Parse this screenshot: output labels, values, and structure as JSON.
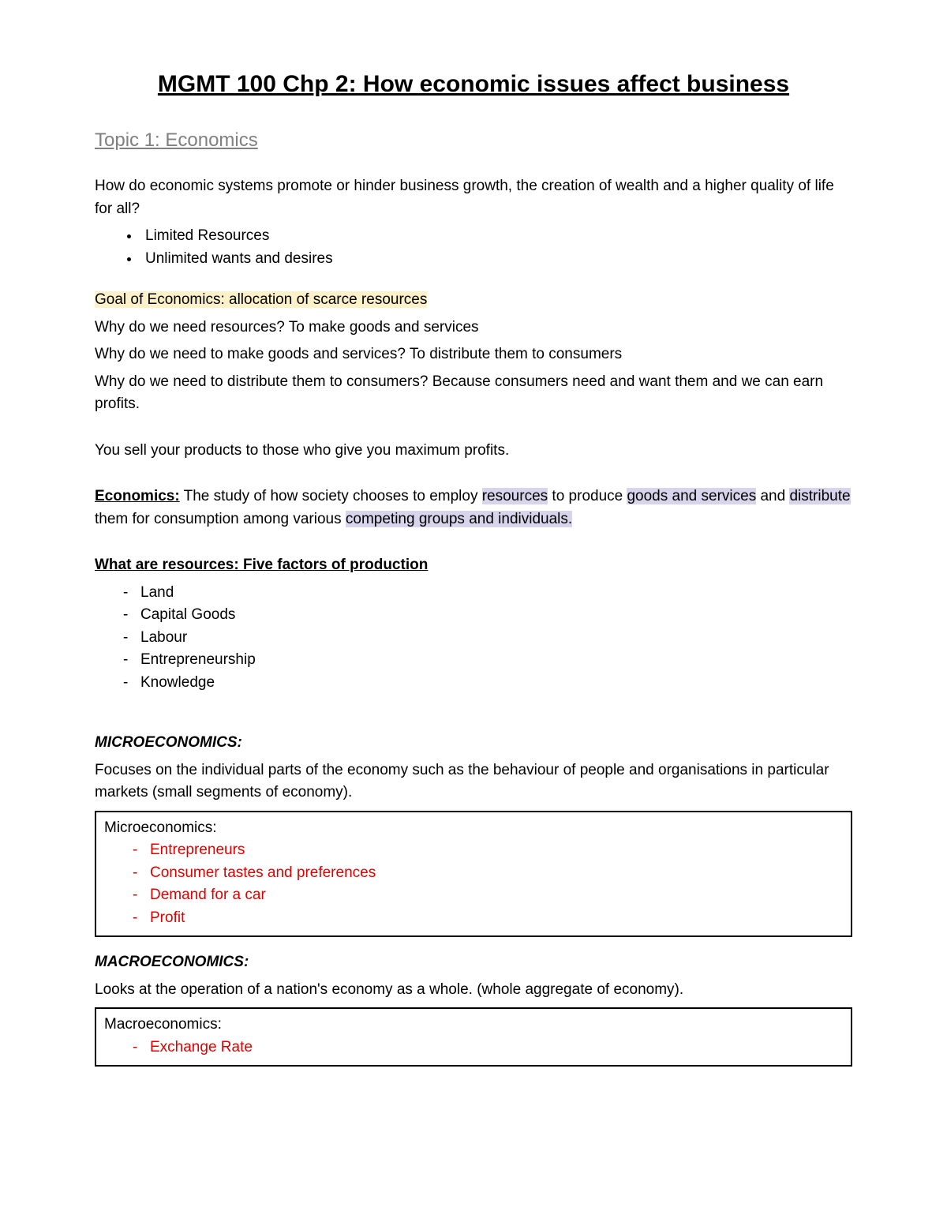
{
  "colors": {
    "text": "#000000",
    "gray": "#808080",
    "red": "#e10000",
    "highlight_yellow": "#fcf1c9",
    "highlight_purple": "#d7d4eb",
    "background": "#ffffff",
    "border": "#000000"
  },
  "title": "MGMT 100 Chp 2: How economic issues affect business",
  "topic": "Topic 1: Economics",
  "intro_q": "How do economic systems promote or hinder business growth, the creation of wealth and a higher quality of life for all?",
  "intro_bullets": [
    "Limited Resources",
    "Unlimited wants and desires"
  ],
  "goal_line": "Goal of Economics: allocation of scarce resources",
  "why1": "Why do we need resources? To make goods and services",
  "why2": "Why do we need to make goods and services? To distribute them to consumers",
  "why3": "Why do we need to distribute them to consumers? Because consumers need and want them and we can earn profits.",
  "sell_line": "You sell your products to those who give you maximum profits.",
  "econ_label": "Economics:",
  "econ_def_1": " The study of how society chooses to employ ",
  "econ_hl_resources": "resources",
  "econ_def_2": " to produce ",
  "econ_hl_goods": "goods and services",
  "econ_def_3": " and ",
  "econ_hl_dist": "distribute",
  "econ_def_4": " them for consumption among various ",
  "econ_hl_groups": "competing groups and individuals.",
  "resources_heading": "What are resources: Five factors of production",
  "resources_list": [
    "Land",
    "Capital Goods",
    "Labour",
    "Entrepreneurship",
    "Knowledge"
  ],
  "micro_heading": "MICROECONOMICS:",
  "micro_desc": "Focuses on the individual parts of the economy such as the behaviour of people and organisations in particular markets (small segments of economy).",
  "micro_box_title": "Microeconomics:",
  "micro_box_items": [
    "Entrepreneurs",
    "Consumer tastes and preferences",
    "Demand for a car",
    "Profit"
  ],
  "macro_heading": "MACROECONOMICS:",
  "macro_desc": "Looks at the operation of a nation's economy as a whole. (whole aggregate of economy).",
  "macro_box_title": "Macroeconomics:",
  "macro_box_items": [
    "Exchange Rate"
  ]
}
